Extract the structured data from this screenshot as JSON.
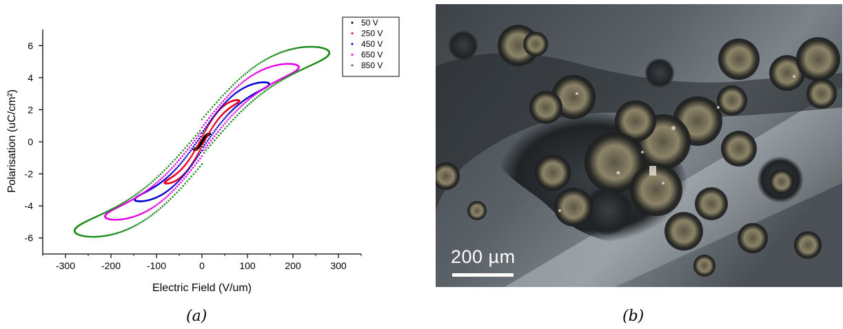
{
  "chart_data": {
    "type": "scatter",
    "title": "",
    "xlabel": "Electric Field (V/um)",
    "ylabel": "Polarisation (uC/cm²)",
    "xlim": [
      -350,
      350
    ],
    "ylim": [
      -7,
      7
    ],
    "x_ticks": [
      -300,
      -200,
      -100,
      0,
      100,
      200,
      300
    ],
    "y_ticks": [
      -6,
      -4,
      -2,
      0,
      2,
      4,
      6
    ],
    "legend_position": "top-right",
    "series": [
      {
        "name": "50 V",
        "color": "#000000",
        "Emax": 18,
        "Pmax": 0.5,
        "c": 0.08,
        "a": 0.0,
        "points": 120
      },
      {
        "name": "250 V",
        "color": "#e8001e",
        "Emax": 82,
        "Pmax": 2.55,
        "c": 0.28,
        "a": 0.02,
        "points": 260
      },
      {
        "name": "450 V",
        "color": "#0000d0",
        "Emax": 148,
        "Pmax": 3.6,
        "c": 0.5,
        "a": 0.05,
        "points": 300
      },
      {
        "name": "650 V",
        "color": "#e600e6",
        "Emax": 213,
        "Pmax": 4.65,
        "c": 0.78,
        "a": 0.12,
        "points": 340
      },
      {
        "name": "850 V",
        "color": "#1a8c1a",
        "Emax": 280,
        "Pmax": 5.55,
        "c": 1.12,
        "a": 0.28,
        "points": 380
      }
    ]
  },
  "micrograph": {
    "scale_bar_label": "200 µm"
  },
  "captions": {
    "a": "(a)",
    "b": "(b)"
  }
}
